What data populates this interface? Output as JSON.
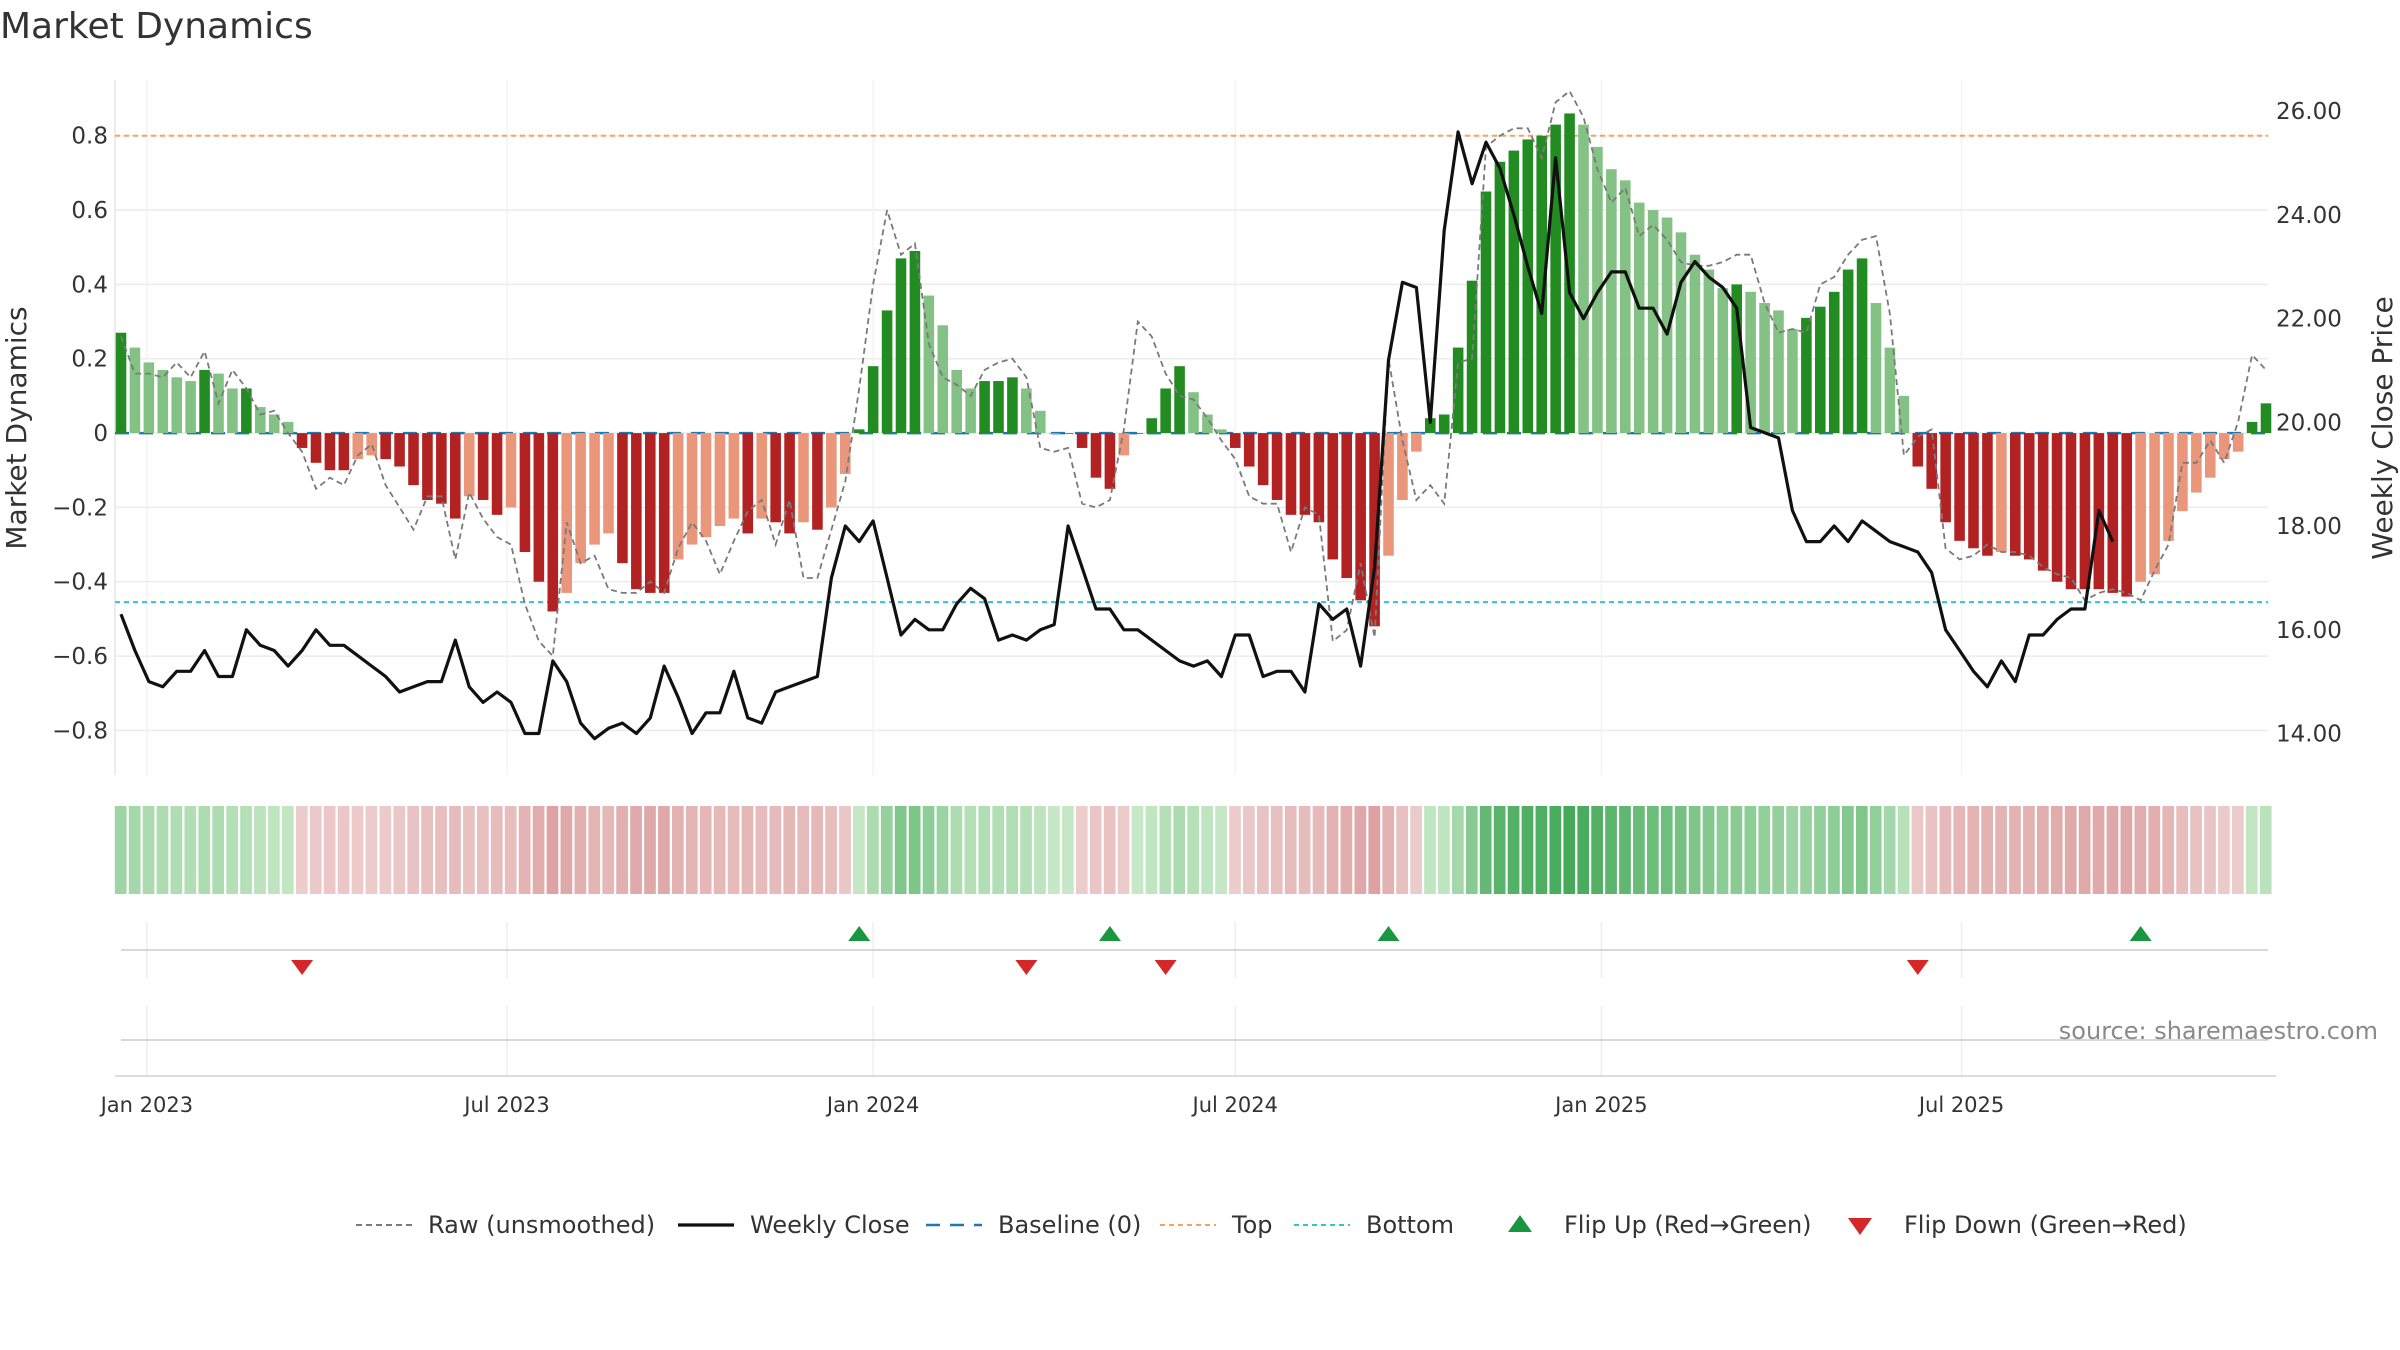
{
  "chart_data": {
    "type": "bar",
    "title": "Market Dynamics",
    "ylabel": "Market Dynamics",
    "ylabel_right": "Weekly Close Price",
    "ylim": [
      -0.92,
      0.95
    ],
    "ylim_right": [
      13.2,
      26.6
    ],
    "y_ticks": [
      "0.8",
      "0.6",
      "0.4",
      "0.2",
      "0",
      "−0.2",
      "−0.4",
      "−0.6",
      "−0.8"
    ],
    "y_tick_values": [
      0.8,
      0.6,
      0.4,
      0.2,
      0,
      -0.2,
      -0.4,
      -0.6,
      -0.8
    ],
    "y_right_ticks": [
      "26.00",
      "24.00",
      "22.00",
      "20.00",
      "18.00",
      "16.00",
      "14.00"
    ],
    "y_right_tick_values": [
      26,
      24,
      22,
      20,
      18,
      16,
      14
    ],
    "x_range": [
      "2022-12-19",
      "2025-08-25"
    ],
    "x_ticks": [
      {
        "label": "Jan 2023",
        "date": "2023-01-01"
      },
      {
        "label": "Jul 2023",
        "date": "2023-07-01"
      },
      {
        "label": "Jan 2024",
        "date": "2024-01-01"
      },
      {
        "label": "Jul 2024",
        "date": "2024-07-01"
      },
      {
        "label": "Jan 2025",
        "date": "2025-01-01"
      },
      {
        "label": "Jul 2025",
        "date": "2025-07-01"
      }
    ],
    "first_week": "2022-12-19",
    "series": [
      {
        "name": "Market Dynamics (smoothed)",
        "kind": "bar",
        "values": [
          0.27,
          0.23,
          0.19,
          0.17,
          0.15,
          0.14,
          0.17,
          0.16,
          0.12,
          0.12,
          0.07,
          0.05,
          0.03,
          -0.04,
          -0.08,
          -0.1,
          -0.1,
          -0.07,
          -0.06,
          -0.07,
          -0.09,
          -0.14,
          -0.18,
          -0.19,
          -0.23,
          -0.17,
          -0.18,
          -0.22,
          -0.2,
          -0.32,
          -0.4,
          -0.48,
          -0.43,
          -0.35,
          -0.3,
          -0.27,
          -0.35,
          -0.42,
          -0.43,
          -0.43,
          -0.34,
          -0.3,
          -0.28,
          -0.25,
          -0.23,
          -0.27,
          -0.23,
          -0.24,
          -0.27,
          -0.24,
          -0.26,
          -0.2,
          -0.11,
          0.01,
          0.18,
          0.33,
          0.47,
          0.49,
          0.37,
          0.29,
          0.17,
          0.12,
          0.14,
          0.14,
          0.15,
          0.12,
          0.06,
          0.0,
          0.0,
          -0.04,
          -0.12,
          -0.15,
          -0.06,
          0.0,
          0.04,
          0.12,
          0.18,
          0.11,
          0.05,
          0.01,
          -0.04,
          -0.09,
          -0.14,
          -0.18,
          -0.22,
          -0.22,
          -0.24,
          -0.34,
          -0.39,
          -0.45,
          -0.52,
          -0.33,
          -0.18,
          -0.05,
          0.04,
          0.05,
          0.23,
          0.41,
          0.65,
          0.73,
          0.76,
          0.79,
          0.8,
          0.83,
          0.86,
          0.83,
          0.77,
          0.71,
          0.68,
          0.62,
          0.6,
          0.58,
          0.54,
          0.48,
          0.44,
          0.39,
          0.4,
          0.38,
          0.35,
          0.33,
          0.28,
          0.31,
          0.34,
          0.38,
          0.44,
          0.47,
          0.35,
          0.23,
          0.1,
          -0.09,
          -0.15,
          -0.24,
          -0.29,
          -0.31,
          -0.33,
          -0.32,
          -0.33,
          -0.34,
          -0.37,
          -0.4,
          -0.42,
          -0.42,
          -0.42,
          -0.43,
          -0.44,
          -0.4,
          -0.38,
          -0.29,
          -0.21,
          -0.16,
          -0.12,
          -0.07,
          -0.05,
          0.03,
          0.08
        ]
      },
      {
        "name": "Raw (unsmoothed)",
        "kind": "line",
        "style": "dashed",
        "values": [
          0.26,
          0.16,
          0.16,
          0.15,
          0.19,
          0.15,
          0.22,
          0.08,
          0.17,
          0.12,
          0.05,
          0.06,
          0.0,
          -0.05,
          -0.15,
          -0.12,
          -0.14,
          -0.06,
          -0.03,
          -0.14,
          -0.2,
          -0.26,
          -0.17,
          -0.17,
          -0.34,
          -0.16,
          -0.23,
          -0.28,
          -0.3,
          -0.46,
          -0.56,
          -0.6,
          -0.24,
          -0.35,
          -0.33,
          -0.42,
          -0.43,
          -0.43,
          -0.4,
          -0.43,
          -0.31,
          -0.24,
          -0.29,
          -0.38,
          -0.29,
          -0.21,
          -0.18,
          -0.3,
          -0.18,
          -0.39,
          -0.39,
          -0.26,
          -0.13,
          0.12,
          0.4,
          0.6,
          0.48,
          0.51,
          0.24,
          0.15,
          0.13,
          0.1,
          0.17,
          0.19,
          0.2,
          0.15,
          -0.04,
          -0.05,
          -0.04,
          -0.19,
          -0.2,
          -0.18,
          0.01,
          0.3,
          0.26,
          0.16,
          0.1,
          0.09,
          0.04,
          -0.02,
          -0.07,
          -0.17,
          -0.19,
          -0.19,
          -0.32,
          -0.2,
          -0.22,
          -0.56,
          -0.53,
          -0.35,
          -0.55,
          0.2,
          -0.02,
          -0.18,
          -0.14,
          -0.19,
          0.19,
          0.2,
          0.77,
          0.8,
          0.82,
          0.82,
          0.74,
          0.89,
          0.92,
          0.85,
          0.71,
          0.62,
          0.66,
          0.53,
          0.56,
          0.52,
          0.46,
          0.45,
          0.45,
          0.46,
          0.48,
          0.48,
          0.35,
          0.27,
          0.28,
          0.27,
          0.4,
          0.42,
          0.48,
          0.52,
          0.53,
          0.32,
          -0.06,
          -0.01,
          0.01,
          -0.31,
          -0.34,
          -0.33,
          -0.3,
          -0.32,
          -0.32,
          -0.33,
          -0.36,
          -0.38,
          -0.39,
          -0.45,
          -0.43,
          -0.42,
          -0.43,
          -0.45,
          -0.37,
          -0.3,
          -0.08,
          -0.08,
          -0.02,
          -0.08,
          0.03,
          0.21,
          0.17
        ]
      },
      {
        "name": "Weekly Close",
        "kind": "line",
        "axis": "right",
        "values": [
          16.3,
          15.6,
          15.0,
          14.9,
          15.2,
          15.2,
          15.6,
          15.1,
          15.1,
          16.0,
          15.7,
          15.6,
          15.3,
          15.6,
          16.0,
          15.7,
          15.7,
          15.5,
          15.3,
          15.1,
          14.8,
          14.9,
          15.0,
          15.0,
          15.8,
          14.9,
          14.6,
          14.8,
          14.6,
          14.0,
          14.0,
          15.4,
          15.0,
          14.2,
          13.9,
          14.1,
          14.2,
          14.0,
          14.3,
          15.3,
          14.7,
          14.0,
          14.4,
          14.4,
          15.2,
          14.3,
          14.2,
          14.8,
          14.9,
          15.0,
          15.1,
          17.0,
          18.0,
          17.7,
          18.1,
          17.0,
          15.9,
          16.2,
          16.0,
          16.0,
          16.5,
          16.8,
          16.6,
          15.8,
          15.9,
          15.8,
          16.0,
          16.1,
          18.0,
          17.2,
          16.4,
          16.4,
          16.0,
          16.0,
          15.8,
          15.6,
          15.4,
          15.3,
          15.4,
          15.1,
          15.9,
          15.9,
          15.1,
          15.2,
          15.2,
          14.8,
          16.5,
          16.2,
          16.4,
          15.3,
          17.2,
          21.2,
          22.7,
          22.6,
          20.0,
          23.7,
          25.6,
          24.6,
          25.4,
          24.9,
          24.0,
          23.0,
          22.1,
          25.1,
          22.5,
          22.0,
          22.5,
          22.9,
          22.9,
          22.2,
          22.2,
          21.7,
          22.7,
          23.1,
          22.8,
          22.6,
          22.2,
          19.9,
          19.8,
          19.7,
          18.3,
          17.7,
          17.7,
          18.0,
          17.7,
          18.1,
          17.9,
          17.7,
          17.6,
          17.5,
          17.1,
          16.0,
          15.6,
          15.2,
          14.9,
          15.4,
          15.0,
          15.9,
          15.9,
          16.2,
          16.4,
          16.4,
          18.3,
          17.7
        ]
      }
    ],
    "reference_lines": [
      {
        "name": "Baseline (0)",
        "value": 0,
        "color": "#1f77b4",
        "style": "dash"
      },
      {
        "name": "Top",
        "value": 0.8,
        "color": "#f4a261",
        "style": "dot"
      },
      {
        "name": "Bottom",
        "value": -0.455,
        "color": "#2ec4d6",
        "style": "dot"
      }
    ],
    "flip_up": {
      "name": "Flip Up (Red→Green)",
      "weeks": [
        53,
        71,
        91,
        145
      ],
      "color": "#1a9641"
    },
    "flip_down": {
      "name": "Flip Down (Green→Red)",
      "weeks": [
        13,
        65,
        75,
        129
      ],
      "color": "#d62728"
    },
    "legend": {
      "placement": "bottom-center",
      "items": [
        {
          "label": "Raw (unsmoothed)",
          "type": "dashline",
          "color": "#7a7a7a"
        },
        {
          "label": "Weekly Close",
          "type": "line",
          "color": "#111111"
        },
        {
          "label": "Baseline (0)",
          "type": "dashline-blue",
          "color": "#1f77b4"
        },
        {
          "label": "Top",
          "type": "dotline",
          "color": "#f4a261"
        },
        {
          "label": "Bottom",
          "type": "dotline",
          "color": "#2ec4d6"
        },
        {
          "label": "Flip Up (Red→Green)",
          "type": "tri-up",
          "color": "#1a9641"
        },
        {
          "label": "Flip Down (Green→Red)",
          "type": "tri-down",
          "color": "#d62728"
        }
      ]
    },
    "colors": {
      "strong_green": "#228b22",
      "light_green": "#84c184",
      "strong_red": "#b22222",
      "light_red": "#e9967a"
    },
    "grid": true,
    "source": "source: sharemaestro.com"
  }
}
